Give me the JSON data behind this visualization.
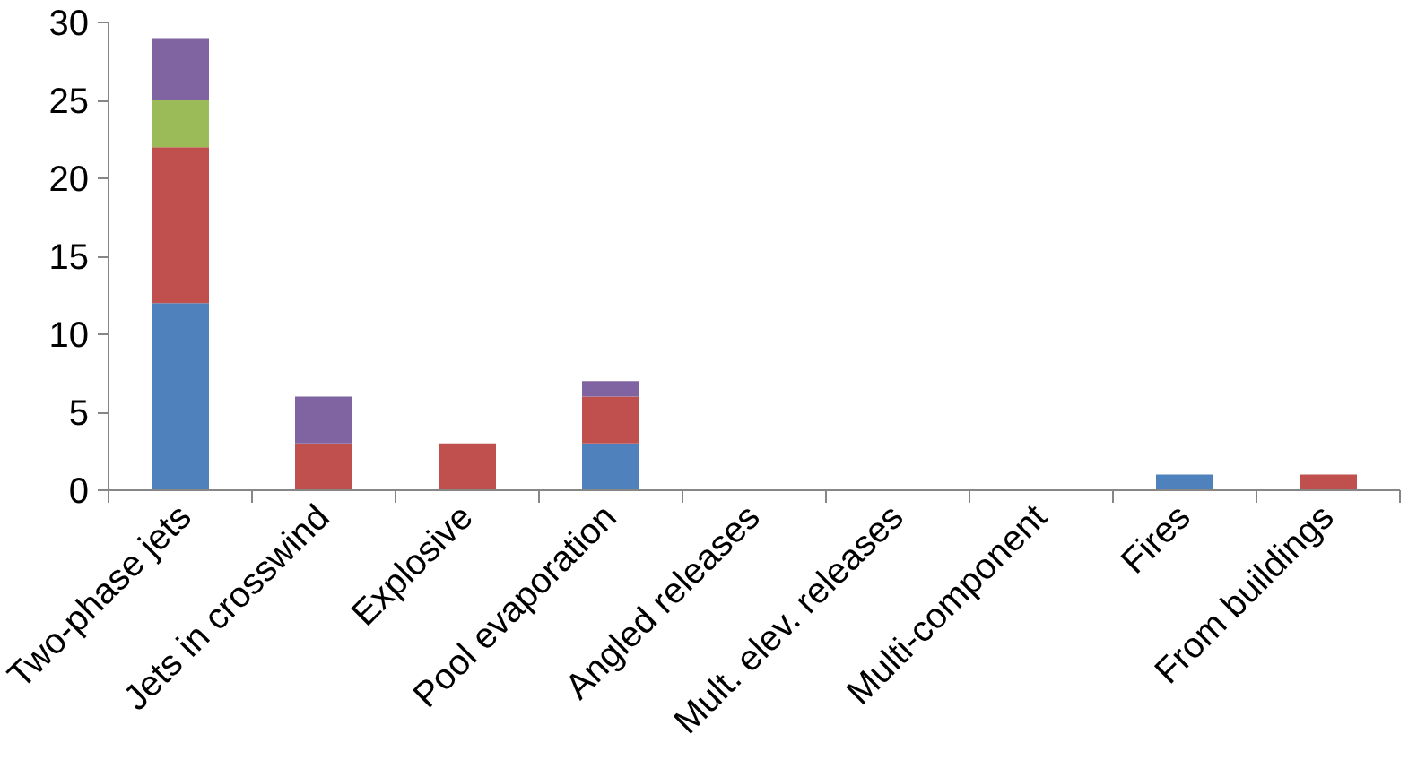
{
  "chart_data": {
    "type": "bar",
    "stacked": true,
    "categories": [
      "Two-phase jets",
      "Jets in crosswind",
      "Explosive",
      "Pool evaporation",
      "Angled releases",
      "Mult. elev. releases",
      "Multi-component",
      "Fires",
      "From buildings"
    ],
    "series": [
      {
        "color": "#4f81bd",
        "values": [
          12,
          null,
          null,
          3,
          null,
          null,
          null,
          1,
          null
        ]
      },
      {
        "color": "#c0504d",
        "values": [
          10,
          3,
          3,
          3,
          null,
          null,
          null,
          null,
          1
        ]
      },
      {
        "color": "#9bbb59",
        "values": [
          3,
          null,
          null,
          null,
          null,
          null,
          null,
          null,
          null
        ]
      },
      {
        "color": "#8064a2",
        "values": [
          4,
          3,
          null,
          1,
          null,
          null,
          null,
          null,
          null
        ]
      }
    ],
    "ylim": [
      0,
      30
    ],
    "yticks": [
      0,
      5,
      10,
      15,
      20,
      25,
      30
    ],
    "grid": false
  }
}
